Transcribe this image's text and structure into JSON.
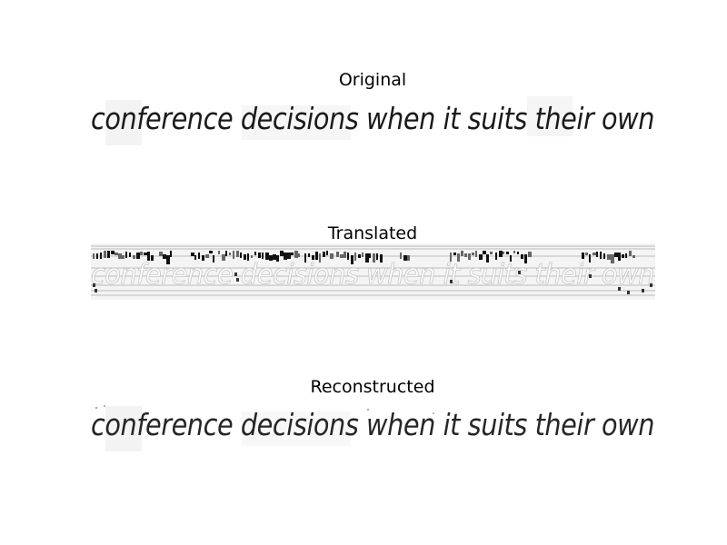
{
  "panels": [
    {
      "title": "Original",
      "text": "conference decisions when it suits their own",
      "icon": "handwriting-image"
    },
    {
      "title": "Translated",
      "icon": "noisy-handwriting-image"
    },
    {
      "title": "Reconstructed",
      "text": "conference decisions when it suits their own",
      "icon": "handwriting-image"
    }
  ],
  "colors": {
    "background": "#ffffff",
    "ink": "#1a1a1a",
    "strip_bg": "#f2f2f2",
    "noise_dark": "#000000",
    "noise_light": "#d9d9d9"
  }
}
